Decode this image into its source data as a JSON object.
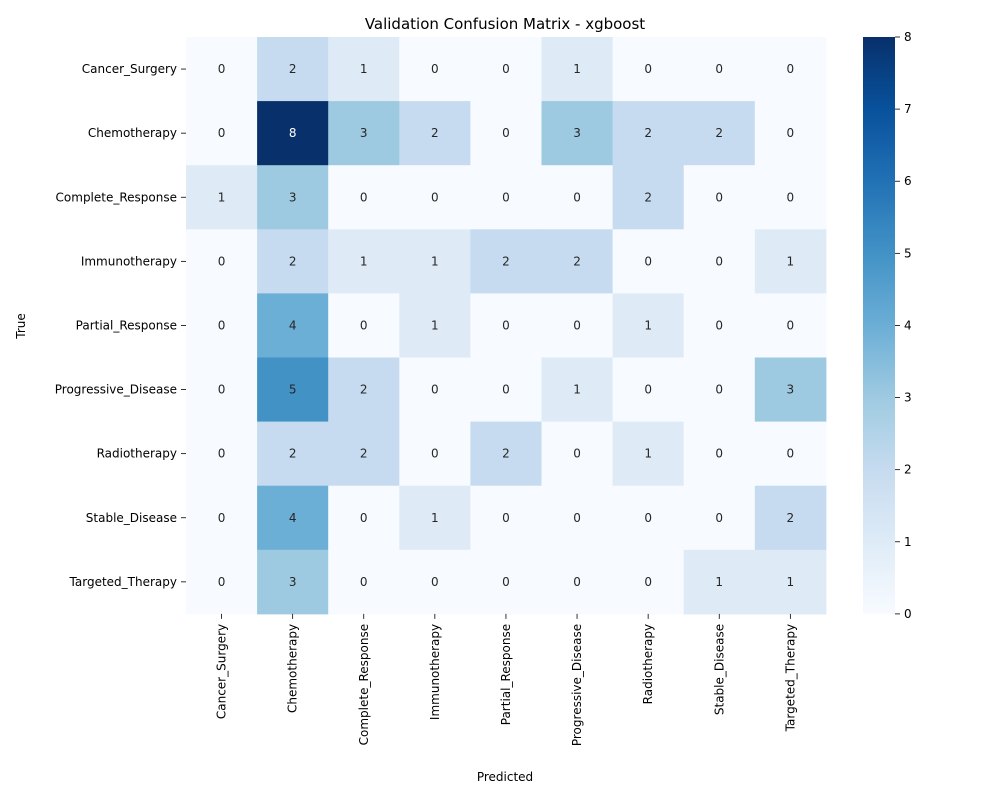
{
  "chart_data": {
    "type": "heatmap",
    "title": "Validation Confusion Matrix - xgboost",
    "xlabel": "Predicted",
    "ylabel": "True",
    "x_categories": [
      "Cancer_Surgery",
      "Chemotherapy",
      "Complete_Response",
      "Immunotherapy",
      "Partial_Response",
      "Progressive_Disease",
      "Radiotherapy",
      "Stable_Disease",
      "Targeted_Therapy"
    ],
    "y_categories": [
      "Cancer_Surgery",
      "Chemotherapy",
      "Complete_Response",
      "Immunotherapy",
      "Partial_Response",
      "Progressive_Disease",
      "Radiotherapy",
      "Stable_Disease",
      "Targeted_Therapy"
    ],
    "values": [
      [
        0,
        2,
        1,
        0,
        0,
        1,
        0,
        0,
        0
      ],
      [
        0,
        8,
        3,
        2,
        0,
        3,
        2,
        2,
        0
      ],
      [
        1,
        3,
        0,
        0,
        0,
        0,
        2,
        0,
        0
      ],
      [
        0,
        2,
        1,
        1,
        2,
        2,
        0,
        0,
        1
      ],
      [
        0,
        4,
        0,
        1,
        0,
        0,
        1,
        0,
        0
      ],
      [
        0,
        5,
        2,
        0,
        0,
        1,
        0,
        0,
        3
      ],
      [
        0,
        2,
        2,
        0,
        2,
        0,
        1,
        0,
        0
      ],
      [
        0,
        4,
        0,
        1,
        0,
        0,
        0,
        0,
        2
      ],
      [
        0,
        3,
        0,
        0,
        0,
        0,
        0,
        1,
        1
      ]
    ],
    "colorbar": {
      "min": 0,
      "max": 8,
      "ticks": [
        0,
        1,
        2,
        3,
        4,
        5,
        6,
        7,
        8
      ],
      "colormap": "Blues"
    }
  }
}
